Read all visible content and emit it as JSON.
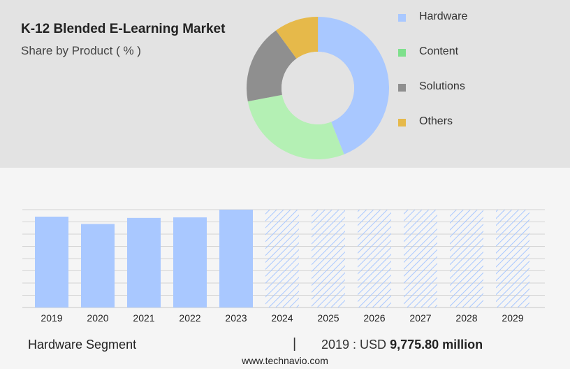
{
  "header": {
    "title": "K-12 Blended E-Learning Market",
    "subtitle": "Share by Product ( % )"
  },
  "chart_data": [
    {
      "type": "pie",
      "title": "K-12 Blended E-Learning Market",
      "subtitle": "Share by Product ( % )",
      "categories": [
        "Hardware",
        "Content",
        "Solutions",
        "Others"
      ],
      "values": [
        44,
        28,
        18,
        10
      ],
      "colors": [
        "#a9c8ff",
        "#b4f0b4",
        "#8f8f8f",
        "#e6b94a"
      ],
      "legend_colors": [
        "#a9c8ff",
        "#7ee08c",
        "#8f8f8f",
        "#e6b94a"
      ],
      "legend": "right"
    },
    {
      "type": "bar",
      "categories": [
        "2019",
        "2020",
        "2021",
        "2022",
        "2023",
        "2024",
        "2025",
        "2026",
        "2027",
        "2028",
        "2029"
      ],
      "values": [
        9775.8,
        8990,
        9640,
        9700,
        10530,
        null,
        null,
        null,
        null,
        null,
        null
      ],
      "forecast": [
        false,
        false,
        false,
        false,
        false,
        true,
        true,
        true,
        true,
        true,
        true
      ],
      "ylim": [
        0,
        10530
      ],
      "grid": true,
      "bar_color": "#a9c8ff",
      "forecast_color": "#a9c8ff"
    }
  ],
  "footer": {
    "segment": "Hardware Segment",
    "separator": "|",
    "year_label": "2019 : USD",
    "value_label": "9,775.80 million"
  },
  "source": "www.technavio.com"
}
